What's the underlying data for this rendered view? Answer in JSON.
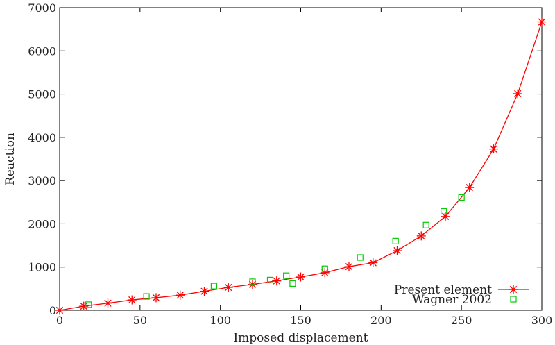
{
  "chart_data": {
    "type": "line",
    "xlabel": "Imposed displacement",
    "ylabel": "Reaction",
    "xlim": [
      0,
      300
    ],
    "ylim": [
      0,
      7000
    ],
    "xticks": [
      0,
      50,
      100,
      150,
      200,
      250,
      300
    ],
    "yticks": [
      0,
      1000,
      2000,
      3000,
      4000,
      5000,
      6000,
      7000
    ],
    "grid": false,
    "legend_position": "bottom-right",
    "series": [
      {
        "name": "Present element",
        "style": "line+star",
        "color": "#ff0000",
        "x": [
          0,
          15,
          30,
          45,
          60,
          75,
          90,
          105,
          120,
          135,
          150,
          165,
          180,
          195,
          210,
          225,
          240,
          255,
          270,
          285,
          300
        ],
        "y": [
          0,
          95,
          165,
          240,
          290,
          350,
          440,
          530,
          600,
          680,
          770,
          870,
          1010,
          1100,
          1380,
          1720,
          2170,
          2840,
          3730,
          5010,
          6670
        ]
      },
      {
        "name": "Wagner 2002",
        "style": "square",
        "color": "#00cc00",
        "x": [
          18,
          54,
          96,
          120,
          131,
          141,
          145,
          165,
          187,
          209,
          228,
          239,
          250
        ],
        "y": [
          130,
          320,
          560,
          660,
          700,
          800,
          620,
          960,
          1220,
          1600,
          1970,
          2290,
          2610
        ]
      }
    ]
  }
}
